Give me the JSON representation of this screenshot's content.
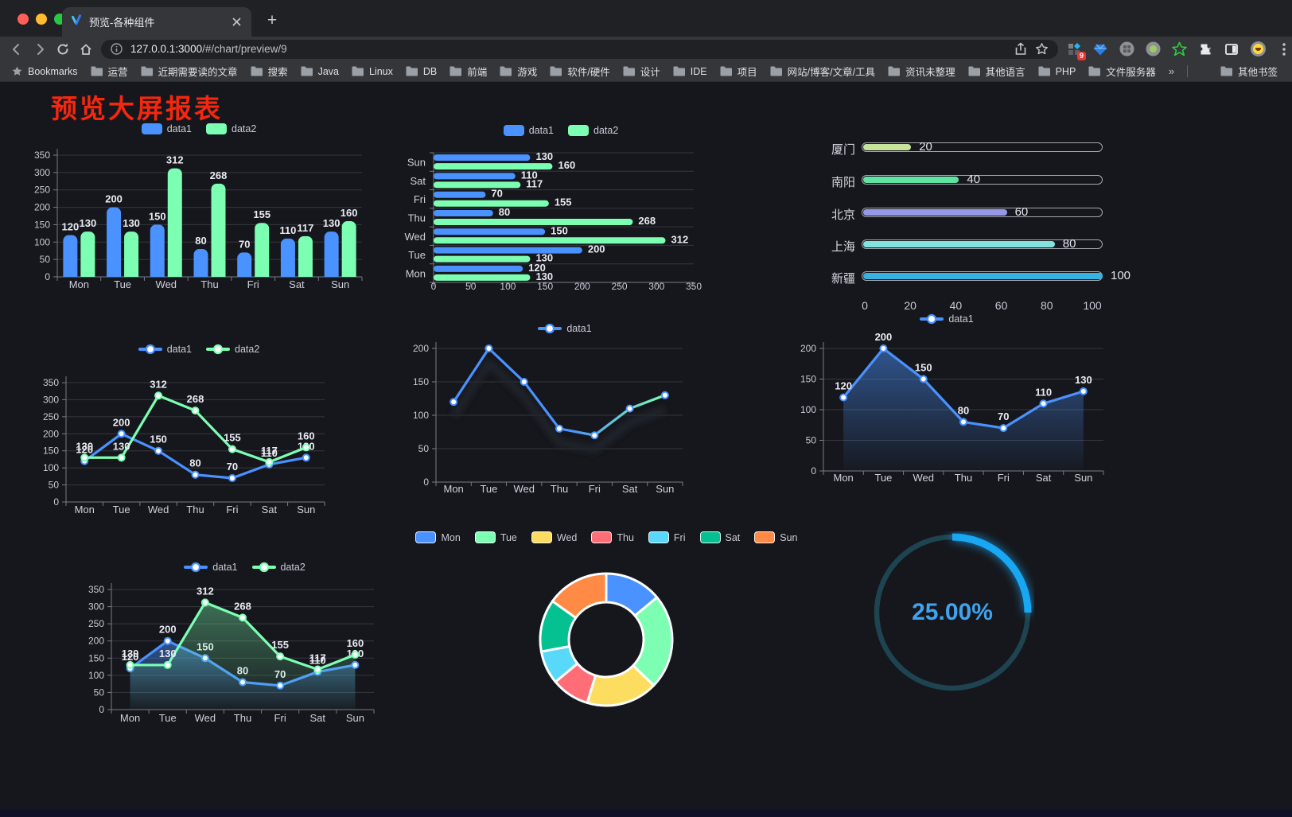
{
  "browser": {
    "tab_title": "预览-各种组件",
    "url_host": "127.0.0.1:3000",
    "url_path": "/#/chart/preview/9",
    "bookmarks_label": "Bookmarks",
    "bookmarks": [
      "运营",
      "近期需要读的文章",
      "搜索",
      "Java",
      "Linux",
      "DB",
      "前端",
      "游戏",
      "软件/硬件",
      "设计",
      "IDE",
      "项目",
      "网站/博客/文章/工具",
      "资讯未整理",
      "其他语言",
      "PHP",
      "文件服务器"
    ],
    "bookmarks_overflow": "»",
    "other_bookmarks": "其他书签",
    "extension_badge": "9"
  },
  "page": {
    "title": "预览大屏报表",
    "title_color": "#f5270e"
  },
  "chart_data": [
    {
      "id": "grouped-bar-chart",
      "type": "bar",
      "categories": [
        "Mon",
        "Tue",
        "Wed",
        "Thu",
        "Fri",
        "Sat",
        "Sun"
      ],
      "series": [
        {
          "name": "data1",
          "color": "#4992ff",
          "values": [
            120,
            200,
            150,
            80,
            70,
            110,
            130
          ]
        },
        {
          "name": "data2",
          "color": "#7cffb2",
          "values": [
            130,
            130,
            312,
            268,
            155,
            117,
            160
          ]
        }
      ],
      "ylim": [
        0,
        350
      ],
      "yticks": [
        0,
        50,
        100,
        150,
        200,
        250,
        300,
        350
      ],
      "legend_position": "top",
      "grid": true,
      "value_labels": true
    },
    {
      "id": "horizontal-bar-chart",
      "type": "bar-horizontal",
      "categories": [
        "Mon",
        "Tue",
        "Wed",
        "Thu",
        "Fri",
        "Sat",
        "Sun"
      ],
      "series": [
        {
          "name": "data1",
          "color": "#4992ff",
          "values": [
            120,
            200,
            150,
            80,
            70,
            110,
            130
          ]
        },
        {
          "name": "data2",
          "color": "#7cffb2",
          "values": [
            130,
            130,
            312,
            268,
            155,
            117,
            160
          ]
        }
      ],
      "xlim": [
        0,
        350
      ],
      "xticks": [
        0,
        50,
        100,
        150,
        200,
        250,
        300,
        350
      ],
      "legend_position": "top",
      "grid": true,
      "value_labels": true
    },
    {
      "id": "progress-bar-chart",
      "type": "progress-bar",
      "categories": [
        "厦门",
        "南阳",
        "北京",
        "上海",
        "新疆"
      ],
      "values": [
        20,
        40,
        60,
        80,
        100
      ],
      "colors": [
        "#c7e59a",
        "#5fe3a1",
        "#9598e8",
        "#7fe4de",
        "#38b2e2"
      ],
      "xlim": [
        0,
        100
      ],
      "xticks": [
        0,
        20,
        40,
        60,
        80,
        100
      ]
    },
    {
      "id": "multi-line-chart",
      "type": "line",
      "categories": [
        "Mon",
        "Tue",
        "Wed",
        "Thu",
        "Fri",
        "Sat",
        "Sun"
      ],
      "series": [
        {
          "name": "data1",
          "color": "#4992ff",
          "values": [
            120,
            200,
            150,
            80,
            70,
            110,
            130
          ]
        },
        {
          "name": "data2",
          "color": "#7cffb2",
          "values": [
            130,
            130,
            312,
            268,
            155,
            117,
            160
          ]
        }
      ],
      "ylim": [
        0,
        350
      ],
      "yticks": [
        0,
        50,
        100,
        150,
        200,
        250,
        300,
        350
      ],
      "legend_position": "top",
      "value_labels": true
    },
    {
      "id": "gradient-line-chart",
      "type": "line",
      "categories": [
        "Mon",
        "Tue",
        "Wed",
        "Thu",
        "Fri",
        "Sat",
        "Sun"
      ],
      "series": [
        {
          "name": "data1",
          "color": "#4992ff",
          "gradient": [
            "#4992ff",
            "#7cffb2"
          ],
          "values": [
            120,
            200,
            150,
            80,
            70,
            110,
            130
          ]
        }
      ],
      "ylim": [
        0,
        200
      ],
      "yticks": [
        0,
        50,
        100,
        150,
        200
      ],
      "legend_position": "top",
      "shadow": true,
      "value_labels": false
    },
    {
      "id": "area-line-chart",
      "type": "line",
      "categories": [
        "Mon",
        "Tue",
        "Wed",
        "Thu",
        "Fri",
        "Sat",
        "Sun"
      ],
      "series": [
        {
          "name": "data1",
          "color": "#4992ff",
          "area": true,
          "values": [
            120,
            200,
            150,
            80,
            70,
            110,
            130
          ]
        }
      ],
      "ylim": [
        0,
        200
      ],
      "yticks": [
        0,
        50,
        100,
        150,
        200
      ],
      "legend_position": "top",
      "value_labels": true
    },
    {
      "id": "multi-area-line-chart",
      "type": "line",
      "categories": [
        "Mon",
        "Tue",
        "Wed",
        "Thu",
        "Fri",
        "Sat",
        "Sun"
      ],
      "series": [
        {
          "name": "data1",
          "color": "#4992ff",
          "area": true,
          "values": [
            120,
            200,
            150,
            80,
            70,
            110,
            130
          ]
        },
        {
          "name": "data2",
          "color": "#7cffb2",
          "area": true,
          "values": [
            130,
            130,
            312,
            268,
            155,
            117,
            160
          ]
        }
      ],
      "ylim": [
        0,
        350
      ],
      "yticks": [
        0,
        50,
        100,
        150,
        200,
        250,
        300,
        350
      ],
      "legend_position": "top",
      "value_labels": true
    },
    {
      "id": "donut-chart",
      "type": "pie",
      "labels": [
        "Mon",
        "Tue",
        "Wed",
        "Thu",
        "Fri",
        "Sat",
        "Sun"
      ],
      "values": [
        120,
        200,
        150,
        80,
        70,
        110,
        130
      ],
      "colors": [
        "#4992ff",
        "#7cffb2",
        "#fddd60",
        "#ff6e76",
        "#58d9f9",
        "#05c091",
        "#ff8a45"
      ],
      "inner_radius_ratio": 0.57,
      "legend_position": "top"
    },
    {
      "id": "gauge-chart",
      "type": "gauge",
      "value": 25,
      "max": 100,
      "label": "25.00%",
      "color": "#18a7f3",
      "track_color": "#1d4450",
      "text_color": "#40a3ee"
    }
  ]
}
